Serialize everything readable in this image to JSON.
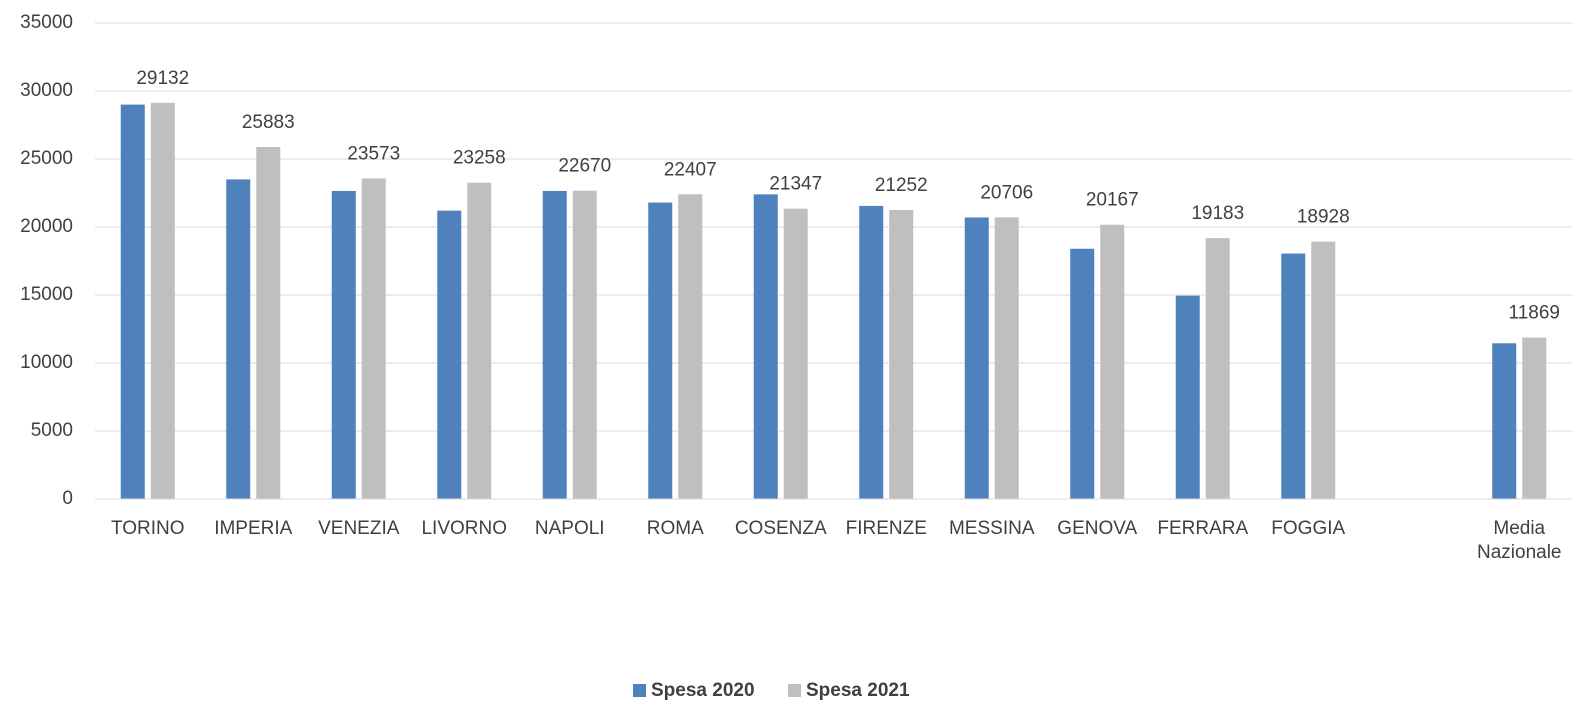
{
  "chart_data": {
    "type": "bar",
    "categories": [
      "TORINO",
      "IMPERIA",
      "VENEZIA",
      "LIVORNO",
      "NAPOLI",
      "ROMA",
      "COSENZA",
      "FIRENZE",
      "MESSINA",
      "GENOVA",
      "FERRARA",
      "FOGGIA",
      null,
      "Media Nazionale"
    ],
    "series": [
      {
        "name": "Spesa 2020",
        "color": "#4f81bd",
        "values": [
          29000,
          23500,
          22650,
          21200,
          22650,
          21800,
          22400,
          21550,
          20700,
          18400,
          14950,
          18050,
          null,
          11450
        ]
      },
      {
        "name": "Spesa 2021",
        "color": "#bfbfbf",
        "data_labels": true,
        "values": [
          29132,
          25883,
          23573,
          23258,
          22670,
          22407,
          21347,
          21252,
          20706,
          20167,
          19183,
          18928,
          null,
          11869
        ]
      }
    ],
    "ylim": [
      0,
      35000
    ],
    "yticks": [
      0,
      5000,
      10000,
      15000,
      20000,
      25000,
      30000,
      35000
    ],
    "grid": true,
    "legend": "bottom"
  }
}
